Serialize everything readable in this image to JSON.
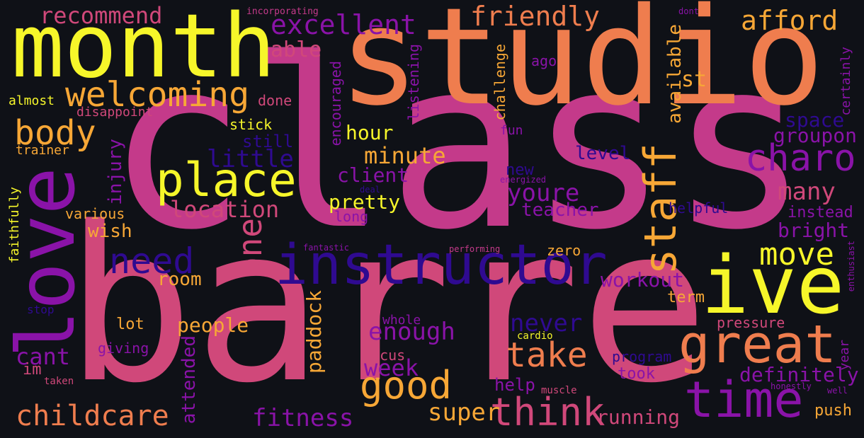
{
  "palette": {
    "background": "#0f1117",
    "magenta": "#c43a8a",
    "pink": "#d0487a",
    "orange": "#ef7d4e",
    "gold": "#f7a736",
    "yellow": "#f6f62a",
    "purple": "#8a13a8",
    "indigo": "#2f0a91"
  },
  "words": {
    "class": "class",
    "barre": "barre",
    "studio": "studio",
    "month": "month",
    "love": "love",
    "instructor": "instructor",
    "ive": "ive",
    "great": "great",
    "time": "time",
    "place": "place",
    "staff": "staff",
    "welcoming": "welcoming",
    "think": "think",
    "good": "good",
    "charo": "charo",
    "body": "body",
    "need": "need",
    "one": "one",
    "take": "take",
    "move": "move",
    "childcare": "childcare",
    "excellent": "excellent",
    "friendly": "friendly",
    "afford": "afford",
    "recommend": "recommend",
    "fitness": "fitness",
    "super": "super",
    "location": "location",
    "little": "little",
    "minute": "minute",
    "enough": "enough",
    "youre": "youre",
    "many": "many",
    "never": "never",
    "week": "week",
    "definitely": "definitely",
    "running": "running",
    "workout": "workout",
    "able": "able",
    "cant": "cant",
    "pretty": "pretty",
    "bright": "bright",
    "space": "space",
    "groupon": "groupon",
    "people": "people",
    "hour": "hour",
    "client": "client",
    "teacher": "teacher",
    "level": "level",
    "paddock": "paddock",
    "attended": "attended",
    "injury": "injury",
    "available": "available",
    "room": "room",
    "wish": "wish",
    "st": "st",
    "instead": "instead",
    "help": "help",
    "push": "push",
    "took": "took",
    "term": "term",
    "zero": "zero",
    "new": "new",
    "still": "still",
    "stick": "stick",
    "done": "done",
    "ago": "ago",
    "fun": "fun",
    "lot": "lot",
    "program": "program",
    "pressure": "pressure",
    "helpful": "helpful",
    "focus": "focus",
    "whole": "whole",
    "giving": "giving",
    "various": "various",
    "long": "long",
    "challenge": "challenge",
    "listening": "listening",
    "encouraged": "encouraged",
    "trainer": "trainer",
    "almost": "almost",
    "disappoint": "disappoint",
    "faithfully": "faithfully",
    "certainly": "certainly",
    "year": "year",
    "im": "im",
    "stop": "stop",
    "cardio": "cardio",
    "muscle": "muscle",
    "taken": "taken",
    "honestly": "honestly",
    "well": "well",
    "enthusiast": "enthusiast",
    "energized": "energized",
    "performing": "performing",
    "fantastic": "fantastic",
    "incorporating": "incorporating",
    "dont": "dont",
    "deal": "deal"
  }
}
